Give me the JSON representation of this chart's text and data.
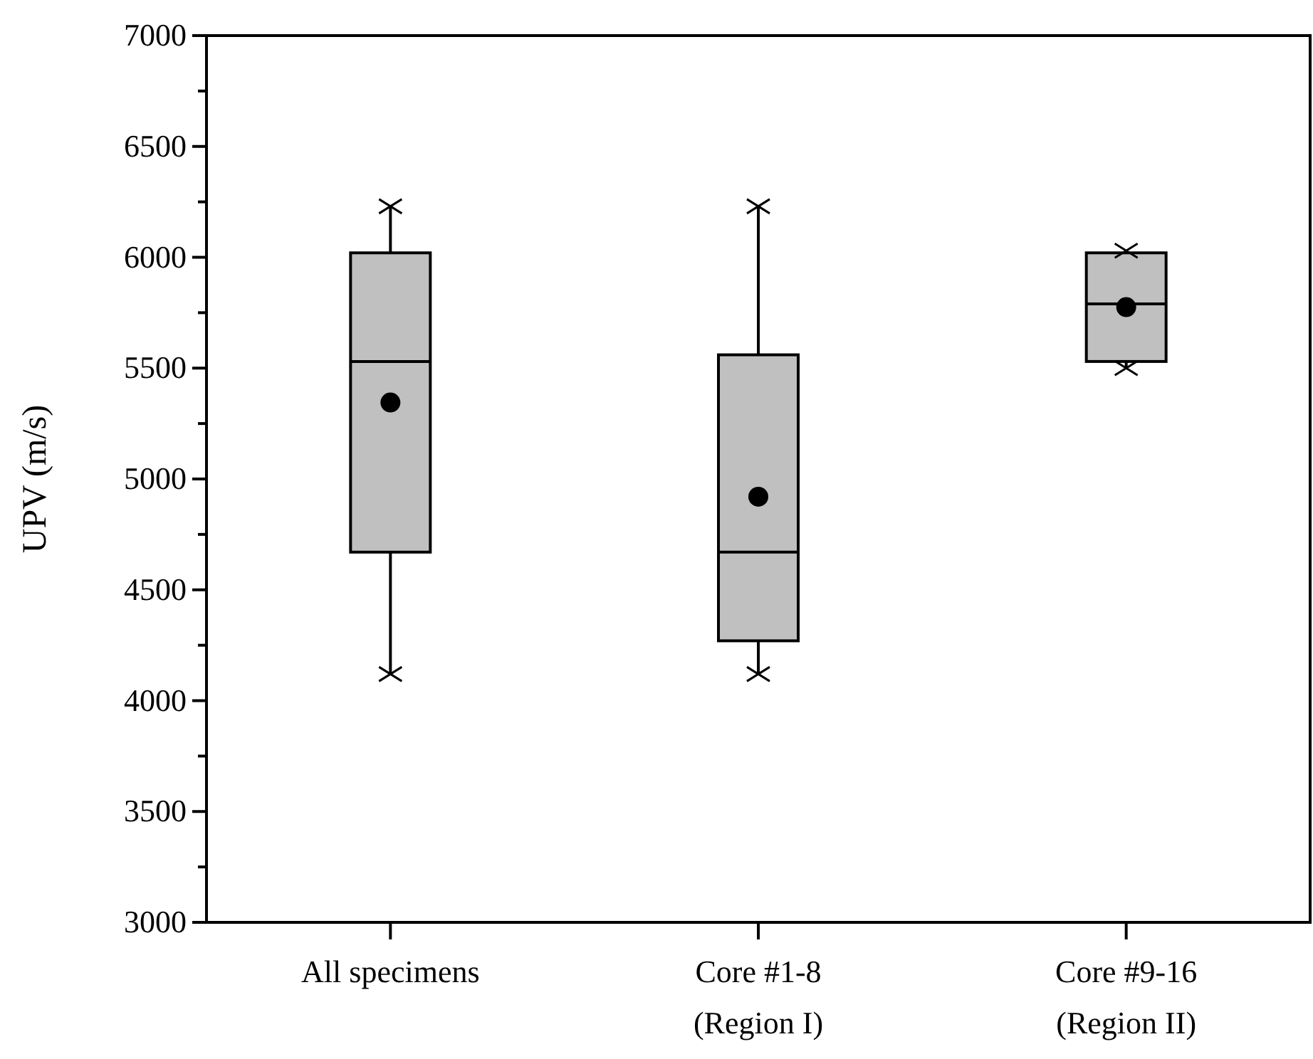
{
  "chart_data": {
    "type": "box",
    "ylabel": "UPV (m/s)",
    "categories": [
      "All specimens",
      "Core #1-8\n(Region I)",
      "Core #9-16\n(Region II)"
    ],
    "boxes": [
      {
        "low": 4120,
        "q1": 4670,
        "median": 5530,
        "q3": 6020,
        "high": 6230,
        "mean": 5345
      },
      {
        "low": 4120,
        "q1": 4270,
        "median": 4670,
        "q3": 5560,
        "high": 6230,
        "mean": 4920
      },
      {
        "low": 5500,
        "q1": 5530,
        "median": 5790,
        "q3": 6020,
        "high": 6030,
        "mean": 5775
      }
    ],
    "color": "#c0c0c0",
    "ylim": [
      3000,
      7000
    ],
    "yticks": [
      3000,
      3500,
      4000,
      4500,
      5000,
      5500,
      6000,
      6500,
      7000
    ],
    "grid": false
  }
}
